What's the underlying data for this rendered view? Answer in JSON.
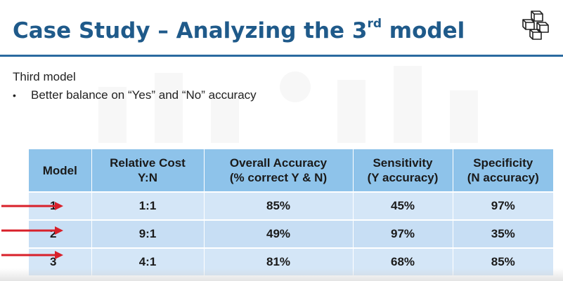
{
  "slide": {
    "title_prefix": "Case Study – Analyzing the 3",
    "title_sup": "rd",
    "title_suffix": " model",
    "subtitle": "Third model",
    "bullets": [
      "Better balance on “Yes” and “No” accuracy"
    ],
    "accent_color": "#1f5a8a"
  },
  "table": {
    "headers": [
      {
        "line1": "Model",
        "line2": ""
      },
      {
        "line1": "Relative Cost",
        "line2": "Y:N"
      },
      {
        "line1": "Overall Accuracy",
        "line2": "(% correct Y & N)"
      },
      {
        "line1": "Sensitivity",
        "line2": "(Y accuracy)"
      },
      {
        "line1": "Specificity",
        "line2": "(N accuracy)"
      }
    ],
    "rows": [
      {
        "model": "1",
        "cost": "1:1",
        "overall": "85%",
        "sensitivity": "45%",
        "specificity": "97%"
      },
      {
        "model": "2",
        "cost": "9:1",
        "overall": "49%",
        "sensitivity": "97%",
        "specificity": "35%"
      },
      {
        "model": "3",
        "cost": "4:1",
        "overall": "81%",
        "sensitivity": "68%",
        "specificity": "85%"
      }
    ],
    "arrow_color": "#d8202a"
  }
}
